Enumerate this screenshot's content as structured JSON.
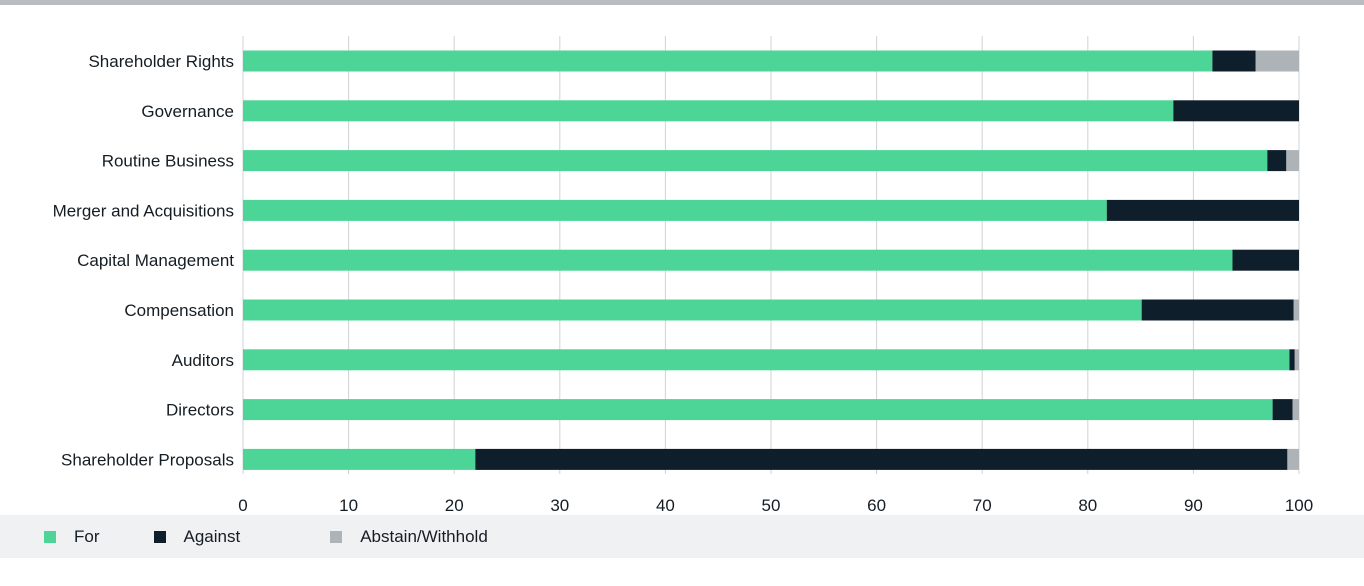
{
  "chart_data": {
    "type": "bar",
    "orientation": "horizontal",
    "stacked": true,
    "categories": [
      "Shareholder Rights",
      "Governance",
      "Routine Business",
      "Merger and Acquisitions",
      "Capital Management",
      "Compensation",
      "Auditors",
      "Directors",
      "Shareholder Proposals"
    ],
    "series": [
      {
        "name": "For",
        "color": "#4cd597",
        "values": [
          91.8,
          88.1,
          97,
          81.8,
          93.7,
          85.1,
          99.1,
          97.5,
          22
        ]
      },
      {
        "name": "Against",
        "color": "#0f1e2b",
        "values": [
          4.1,
          11.9,
          1.8,
          18.2,
          6.3,
          14.4,
          0.5,
          1.9,
          76.9
        ]
      },
      {
        "name": "Abstain/Withhold",
        "color": "#aeb3b8",
        "values": [
          4.1,
          0,
          1.2,
          0,
          0,
          0.5,
          0.4,
          0.6,
          1.1
        ]
      }
    ],
    "xlim": [
      0,
      100
    ],
    "xticks": [
      "0",
      "10",
      "20",
      "30",
      "40",
      "50",
      "60",
      "70",
      "80",
      "90",
      "100"
    ],
    "grid": "vertical",
    "legend_position": "bottom-left",
    "title": "",
    "xlabel": "",
    "ylabel": ""
  }
}
